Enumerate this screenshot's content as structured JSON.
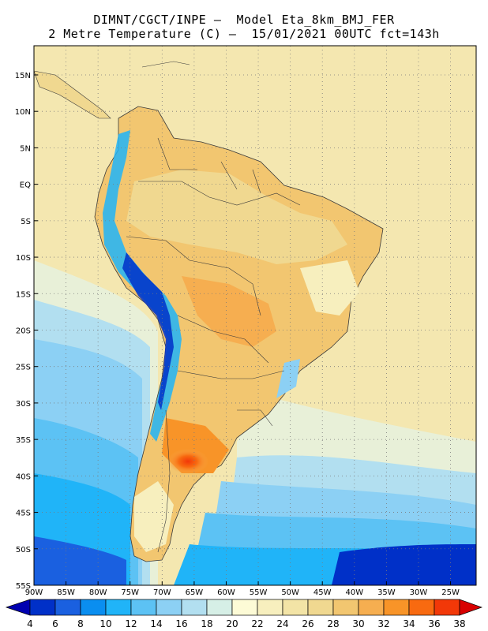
{
  "title": {
    "line1": "DIMNT/CGCT/INPE –  Model Eta_8km_BMJ_FER",
    "line2": "2 Metre Temperature (C) –  15/01/2021 00UTC fct=143h"
  },
  "map": {
    "lat_labels": [
      "15N",
      "10N",
      "5N",
      "EQ",
      "5S",
      "10S",
      "15S",
      "20S",
      "25S",
      "30S",
      "35S",
      "40S",
      "45S",
      "50S",
      "55S"
    ],
    "lon_labels": [
      "90W",
      "85W",
      "80W",
      "75W",
      "70W",
      "65W",
      "60W",
      "55W",
      "50W",
      "45W",
      "40W",
      "35W",
      "30W",
      "25W"
    ],
    "lat_range": [
      -55,
      19
    ],
    "lon_range": [
      -90,
      -21
    ]
  },
  "colorbar": {
    "labels": [
      "4",
      "6",
      "8",
      "10",
      "12",
      "14",
      "16",
      "18",
      "20",
      "22",
      "24",
      "26",
      "28",
      "30",
      "32",
      "34",
      "36",
      "38"
    ],
    "colors": [
      "#0030c8",
      "#1a60e0",
      "#0a8ef0",
      "#20b4f8",
      "#5cc2f4",
      "#8cd0f4",
      "#b2dff0",
      "#d6efe6",
      "#fdfbd6",
      "#f7efbe",
      "#f3e4a6",
      "#f0d890",
      "#f2c670",
      "#f6ae50",
      "#f89428",
      "#f86a10",
      "#f23808"
    ],
    "low_color": "#0000b0",
    "high_color": "#d80000"
  }
}
